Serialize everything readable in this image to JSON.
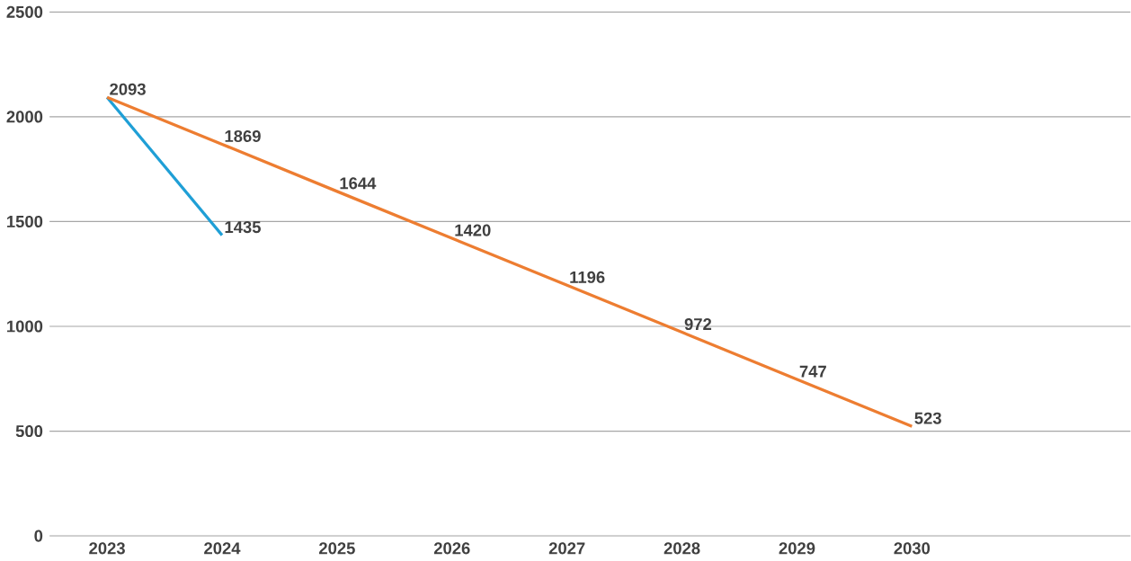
{
  "chart_data": {
    "type": "line",
    "categories": [
      "2023",
      "2024",
      "2025",
      "2026",
      "2027",
      "2028",
      "2029",
      "2030"
    ],
    "series": [
      {
        "color": "#ed7d31",
        "values": [
          2093,
          1869,
          1644,
          1420,
          1196,
          972,
          747,
          523
        ],
        "value_labels": [
          "2093",
          "1869",
          "1644",
          "1420",
          "1196",
          "972",
          "747",
          "523"
        ]
      },
      {
        "color": "#1f9fd6",
        "values": [
          2093,
          1435,
          null,
          null,
          null,
          null,
          null,
          null
        ],
        "value_labels": [
          null,
          "1435",
          null,
          null,
          null,
          null,
          null,
          null
        ]
      }
    ],
    "ylim": [
      0,
      2500
    ],
    "yticks": [
      0,
      500,
      1000,
      1500,
      2000,
      2500
    ],
    "grid": "y",
    "marker": "none",
    "line_style": "solid"
  }
}
